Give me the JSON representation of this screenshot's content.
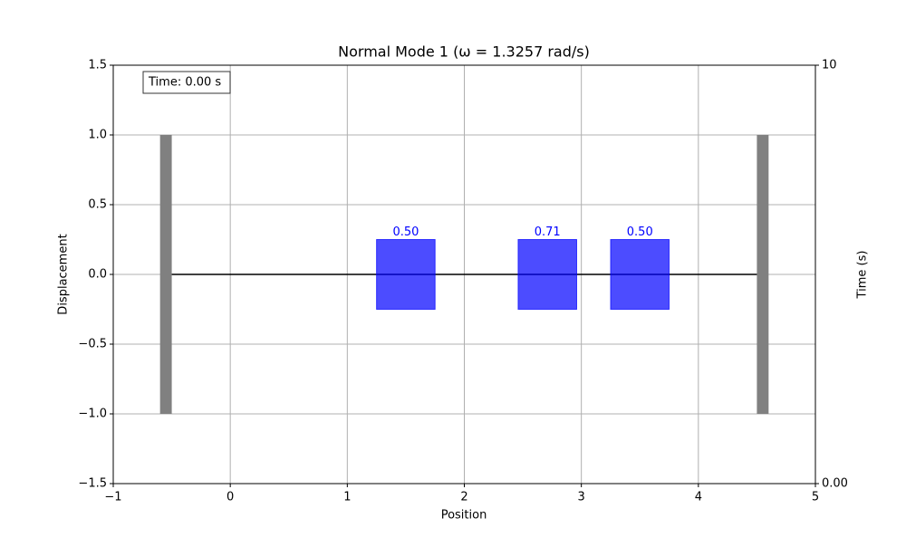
{
  "chart_data": {
    "type": "normal-mode",
    "title": "Normal Mode 1 (ω = 1.3257 rad/s)",
    "x_label": "Position",
    "y_label": "Displacement",
    "y2_label": "Time (s)",
    "annotation": "Time: 0.00 s",
    "xlim": [
      -1,
      5
    ],
    "xticks": [
      {
        "value": -1,
        "label": "−1"
      },
      0,
      1,
      2,
      3,
      4,
      5
    ],
    "ylim": [
      -1.5,
      1.5
    ],
    "yticks": [
      {
        "value": -1.5,
        "label": "−1.5"
      },
      {
        "value": -1.0,
        "label": "−1.0"
      },
      {
        "value": -0.5,
        "label": "−0.5"
      },
      {
        "value": 0,
        "label": "0.0"
      },
      0.5,
      {
        "value": 1.0,
        "label": "1.0"
      },
      1.5
    ],
    "y2lim": [
      0,
      10
    ],
    "y2ticks": [
      {
        "value": 0,
        "label": "0.00"
      },
      10
    ],
    "grid": true,
    "walls": {
      "x": [
        -0.55,
        4.55
      ],
      "width": 0.1,
      "y": [
        -1,
        1
      ],
      "color": "#808080"
    },
    "spring": {
      "x": [
        -0.5,
        4.5
      ],
      "y": [
        0,
        0
      ],
      "color": "#000000"
    },
    "masses": {
      "x": [
        1.5,
        2.71,
        3.5
      ],
      "values": [
        0.5,
        0.71,
        0.5
      ],
      "value_labels": [
        "0.50",
        "0.71",
        "0.50"
      ],
      "size": 0.5,
      "color": "#0000ff"
    }
  }
}
